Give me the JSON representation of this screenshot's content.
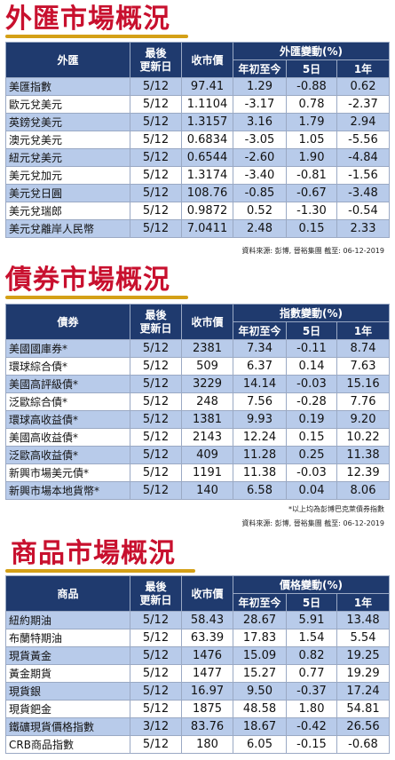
{
  "fx": {
    "title": "外匯市場概況",
    "headers": {
      "name": "外匯",
      "date": "最後\n更新日",
      "price": "收市價",
      "change": "外匯變動(%)",
      "ytd": "年初至今",
      "d5": "5日",
      "y1": "1年"
    },
    "rows": [
      {
        "name": "美匯指數",
        "date": "5/12",
        "price": "97.41",
        "ytd": "1.29",
        "d5": "-0.88",
        "y1": "0.62"
      },
      {
        "name": "歐元兌美元",
        "date": "5/12",
        "price": "1.1104",
        "ytd": "-3.17",
        "d5": "0.78",
        "y1": "-2.37"
      },
      {
        "name": "英鎊兌美元",
        "date": "5/12",
        "price": "1.3157",
        "ytd": "3.16",
        "d5": "1.79",
        "y1": "2.94"
      },
      {
        "name": "澳元兌美元",
        "date": "5/12",
        "price": "0.6834",
        "ytd": "-3.05",
        "d5": "1.05",
        "y1": "-5.56"
      },
      {
        "name": "紐元兌美元",
        "date": "5/12",
        "price": "0.6544",
        "ytd": "-2.60",
        "d5": "1.90",
        "y1": "-4.84"
      },
      {
        "name": "美元兌加元",
        "date": "5/12",
        "price": "1.3174",
        "ytd": "-3.40",
        "d5": "-0.81",
        "y1": "-1.56"
      },
      {
        "name": "美元兌日圓",
        "date": "5/12",
        "price": "108.76",
        "ytd": "-0.85",
        "d5": "-0.67",
        "y1": "-3.48"
      },
      {
        "name": "美元兌瑞郎",
        "date": "5/12",
        "price": "0.9872",
        "ytd": "0.52",
        "d5": "-1.30",
        "y1": "-0.54"
      },
      {
        "name": "美元兌離岸人民幣",
        "date": "5/12",
        "price": "7.0411",
        "ytd": "2.48",
        "d5": "0.15",
        "y1": "2.33"
      }
    ],
    "source": "資料來源: 彭博, 晉裕集團 截至: 06-12-2019"
  },
  "bonds": {
    "title": "債券市場概況",
    "headers": {
      "name": "債券",
      "date": "最後\n更新日",
      "price": "收市價",
      "change": "指數變動(%)",
      "ytd": "年初至今",
      "d5": "5日",
      "y1": "1年"
    },
    "rows": [
      {
        "name": "美國國庫券*",
        "date": "5/12",
        "price": "2381",
        "ytd": "7.34",
        "d5": "-0.11",
        "y1": "8.74"
      },
      {
        "name": "環球綜合債*",
        "date": "5/12",
        "price": "509",
        "ytd": "6.37",
        "d5": "0.14",
        "y1": "7.63"
      },
      {
        "name": "美國高評級債*",
        "date": "5/12",
        "price": "3229",
        "ytd": "14.14",
        "d5": "-0.03",
        "y1": "15.16"
      },
      {
        "name": "泛歐綜合債*",
        "date": "5/12",
        "price": "248",
        "ytd": "7.56",
        "d5": "-0.28",
        "y1": "7.76"
      },
      {
        "name": "環球高收益債*",
        "date": "5/12",
        "price": "1381",
        "ytd": "9.93",
        "d5": "0.19",
        "y1": "9.20"
      },
      {
        "name": "美國高收益債*",
        "date": "5/12",
        "price": "2143",
        "ytd": "12.24",
        "d5": "0.15",
        "y1": "10.22"
      },
      {
        "name": "泛歐高收益債*",
        "date": "5/12",
        "price": "409",
        "ytd": "11.28",
        "d5": "0.25",
        "y1": "11.38"
      },
      {
        "name": "新興市場美元債*",
        "date": "5/12",
        "price": "1191",
        "ytd": "11.38",
        "d5": "-0.03",
        "y1": "12.39"
      },
      {
        "name": "新興市場本地貨幣*",
        "date": "5/12",
        "price": "140",
        "ytd": "6.58",
        "d5": "0.04",
        "y1": "8.06"
      }
    ],
    "note": "*以上均為彭博巴克萊債券指數",
    "source": "資料來源: 彭博, 晉裕集團 截至: 06-12-2019"
  },
  "commodities": {
    "title": "商品市場概況",
    "headers": {
      "name": "商品",
      "date": "最後\n更新日",
      "price": "收市價",
      "change": "價格變動(%)",
      "ytd": "年初至今",
      "d5": "5日",
      "y1": "1年"
    },
    "rows": [
      {
        "name": "紐約期油",
        "date": "5/12",
        "price": "58.43",
        "ytd": "28.67",
        "d5": "5.91",
        "y1": "13.48"
      },
      {
        "name": "布蘭特期油",
        "date": "5/12",
        "price": "63.39",
        "ytd": "17.83",
        "d5": "1.54",
        "y1": "5.54"
      },
      {
        "name": "現貨黃金",
        "date": "5/12",
        "price": "1476",
        "ytd": "15.09",
        "d5": "0.82",
        "y1": "19.25"
      },
      {
        "name": "黃金期貨",
        "date": "5/12",
        "price": "1477",
        "ytd": "15.27",
        "d5": "0.77",
        "y1": "19.29"
      },
      {
        "name": "現貨銀",
        "date": "5/12",
        "price": "16.97",
        "ytd": "9.50",
        "d5": "-0.37",
        "y1": "17.24"
      },
      {
        "name": "現貨鈀金",
        "date": "5/12",
        "price": "1875",
        "ytd": "48.58",
        "d5": "1.80",
        "y1": "54.81"
      },
      {
        "name": "鐵礦現貨價格指數",
        "date": "3/12",
        "price": "83.76",
        "ytd": "18.67",
        "d5": "-0.42",
        "y1": "26.56"
      },
      {
        "name": "CRB商品指數",
        "date": "5/12",
        "price": "180",
        "ytd": "6.05",
        "d5": "-0.15",
        "y1": "-0.68"
      }
    ]
  },
  "colors": {
    "title": "#c8102e",
    "underline": "#d4a017",
    "header": "#1f3a6e",
    "stripe": "#b8cbea"
  }
}
